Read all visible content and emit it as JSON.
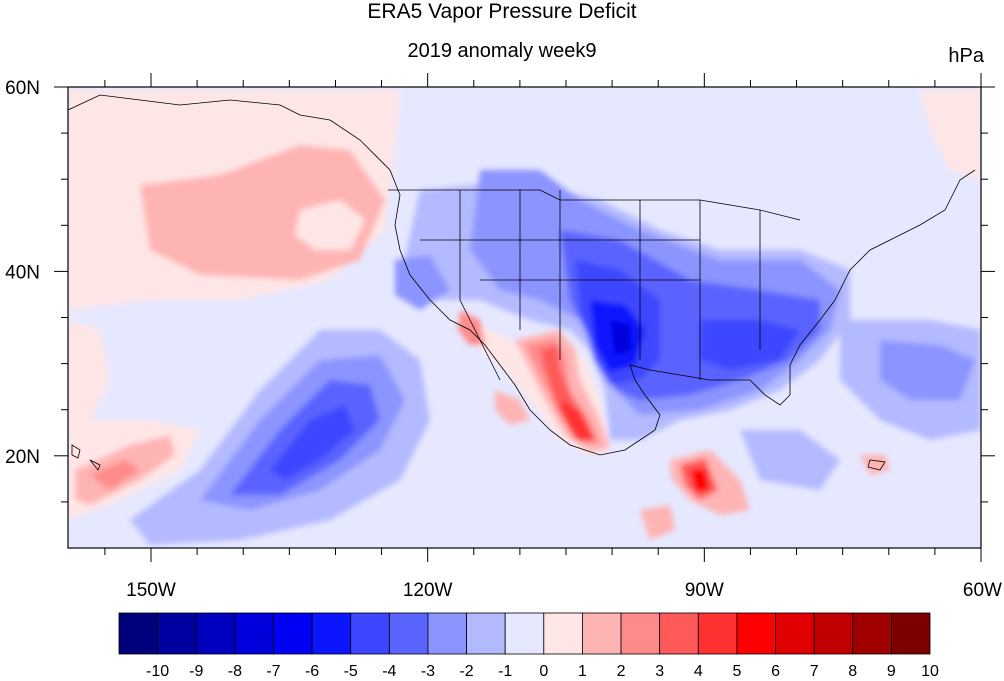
{
  "title": "ERA5 Vapor Pressure Deficit",
  "subtitle": "2019 anomaly week9",
  "units": "hPa",
  "lon_ticks": [
    {
      "lon": -150,
      "label": "150W"
    },
    {
      "lon": -120,
      "label": "120W"
    },
    {
      "lon": -90,
      "label": "90W"
    },
    {
      "lon": -60,
      "label": "60W"
    }
  ],
  "lat_ticks": [
    {
      "lat": 60,
      "label": "60N"
    },
    {
      "lat": 40,
      "label": "40N"
    },
    {
      "lat": 20,
      "label": "20N"
    }
  ],
  "map_extent": {
    "lon_min": -159,
    "lon_max": -60,
    "lat_min": 10,
    "lat_max": 60
  },
  "colorbar": {
    "labels": [
      "-10",
      "-9",
      "-8",
      "-7",
      "-6",
      "-5",
      "-4",
      "-3",
      "-2",
      "-1",
      "0",
      "1",
      "2",
      "3",
      "4",
      "5",
      "6",
      "7",
      "8",
      "9",
      "10"
    ],
    "colors": [
      "#00007d",
      "#0000a0",
      "#0000bf",
      "#0000dc",
      "#0000f5",
      "#0b16ff",
      "#3c46ff",
      "#5a64ff",
      "#8c94ff",
      "#b4baff",
      "#e6e8ff",
      "#ffe6e6",
      "#ffb4b4",
      "#ff8a8a",
      "#ff5a5a",
      "#ff3030",
      "#ff0000",
      "#e00000",
      "#c00000",
      "#a00000",
      "#7d0000"
    ]
  }
}
